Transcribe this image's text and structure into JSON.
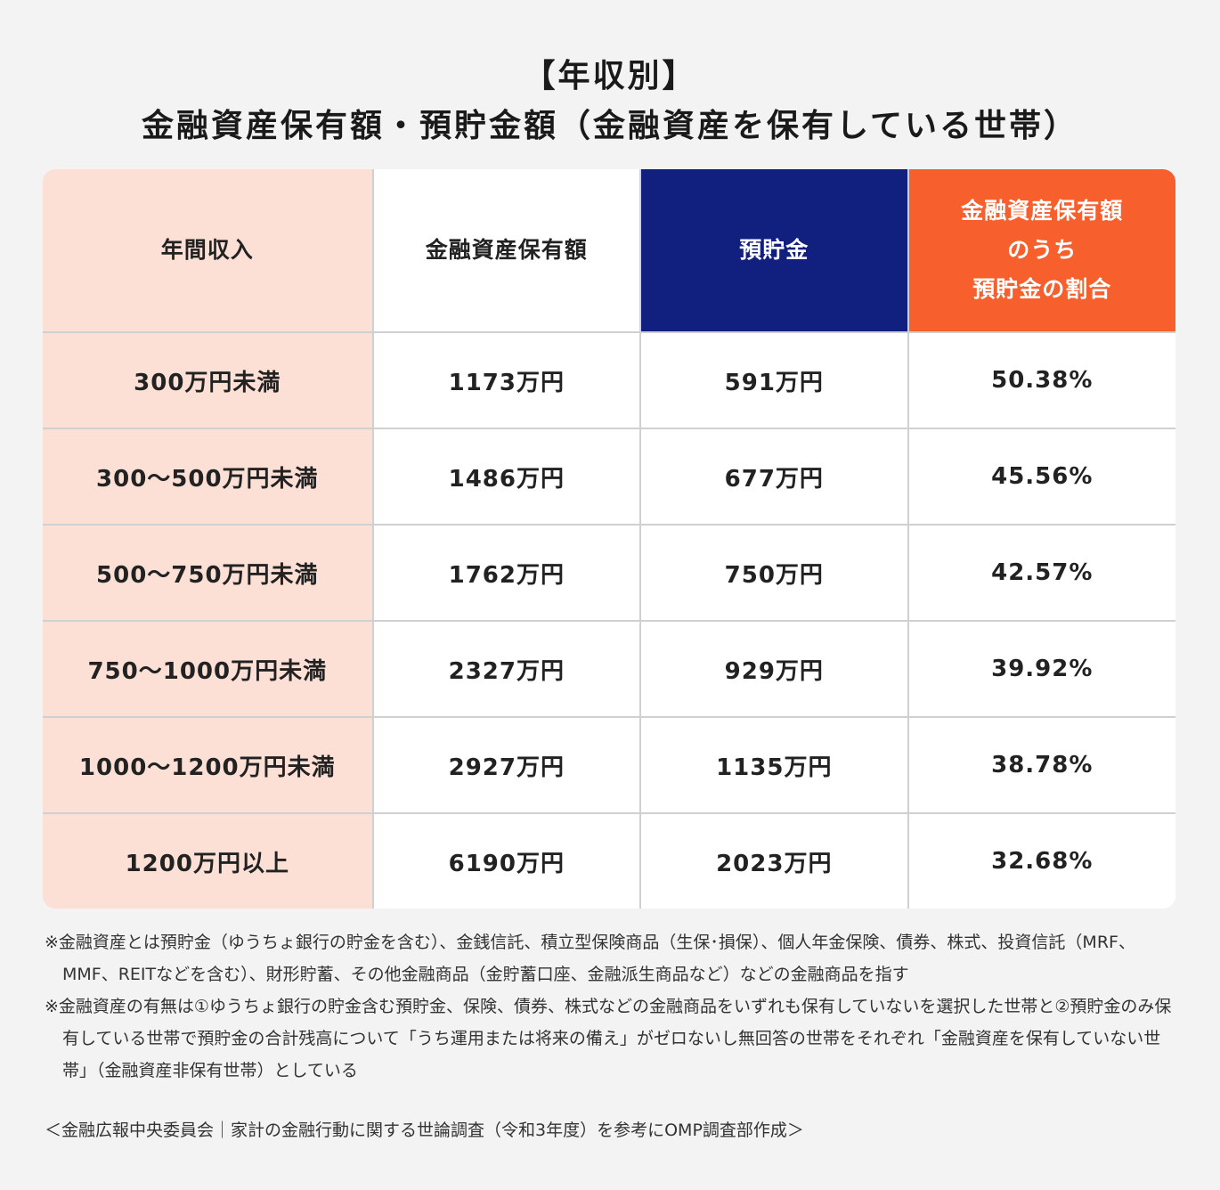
{
  "title_line1": "【年収別】",
  "title_line2": "金融資産保有額・預貯金額（金融資産を保有している世帯）",
  "colors": {
    "row_header_bg": "#fce0d6",
    "savings_header_bg": "#111f7e",
    "ratio_header_bg": "#f7602c",
    "background": "#f3f3f3"
  },
  "chart_data": {
    "type": "table",
    "columns": [
      "年間収入",
      "金融資産保有額",
      "預貯金",
      "金融資産保有額のうち預貯金の割合"
    ],
    "column_lines": [
      [
        "年間収入"
      ],
      [
        "金融資産保有額"
      ],
      [
        "預貯金"
      ],
      [
        "金融資産保有額",
        "のうち",
        "預貯金の割合"
      ]
    ],
    "rows": [
      [
        "300万円未満",
        "1173万円",
        "591万円",
        "50.38%"
      ],
      [
        "300〜500万円未満",
        "1486万円",
        "677万円",
        "45.56%"
      ],
      [
        "500〜750万円未満",
        "1762万円",
        "750万円",
        "42.57%"
      ],
      [
        "750〜1000万円未満",
        "2327万円",
        "929万円",
        "39.92%"
      ],
      [
        "1000〜1200万円未満",
        "2927万円",
        "1135万円",
        "38.78%"
      ],
      [
        "1200万円以上",
        "6190万円",
        "2023万円",
        "32.68%"
      ]
    ]
  },
  "notes": [
    "※金融資産とは預貯金（ゆうちょ銀行の貯金を含む）、金銭信託、積立型保険商品（生保･損保）、個人年金保険、債券、株式、投資信託（MRF、MMF、REITなどを含む）、財形貯蓄、その他金融商品（金貯蓄口座、金融派生商品など）などの金融商品を指す",
    "※金融資産の有無は①ゆうちょ銀行の貯金含む預貯金、保険、債券、株式などの金融商品をいずれも保有していないを選択した世帯と②預貯金のみ保有している世帯で預貯金の合計残高について「うち運用または将来の備え」がゼロないし無回答の世帯をそれぞれ「金融資産を保有していない世帯」（金融資産非保有世帯）としている"
  ],
  "source": "＜金融広報中央委員会｜家計の金融行動に関する世論調査（令和3年度）を参考にOMP調査部作成＞"
}
